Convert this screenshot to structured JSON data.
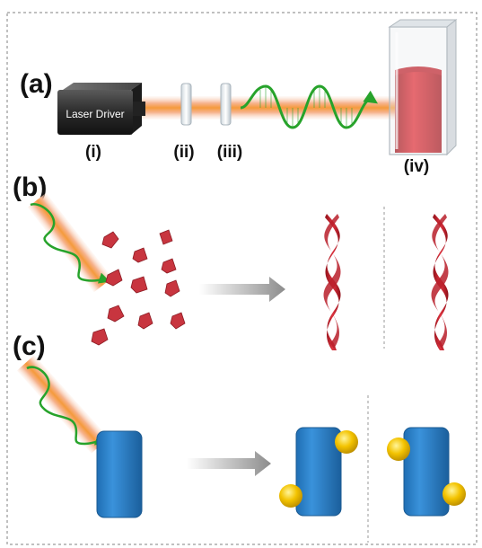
{
  "panels": {
    "a": {
      "label": "(a)",
      "laser_driver_text": "Laser Driver",
      "components": [
        {
          "label": "(i)"
        },
        {
          "label": "(ii)"
        },
        {
          "label": "(iii)"
        },
        {
          "label": "(iv)"
        }
      ]
    },
    "b": {
      "label": "(b)"
    },
    "c": {
      "label": "(c)"
    }
  },
  "colors": {
    "beam_core": "#f2a24a",
    "beam_glow": "#f5b7a0",
    "wave_green": "#27a32b",
    "crystal_red": "#c8353f",
    "helix_red": "#c0232f",
    "block_blue": "#2a7fc8",
    "nanoparticle_gold": "#f1c000",
    "cuvette_liquid": "#d11f26",
    "arrow_gray": "#9a9a9a",
    "border_dash": "#808080"
  }
}
